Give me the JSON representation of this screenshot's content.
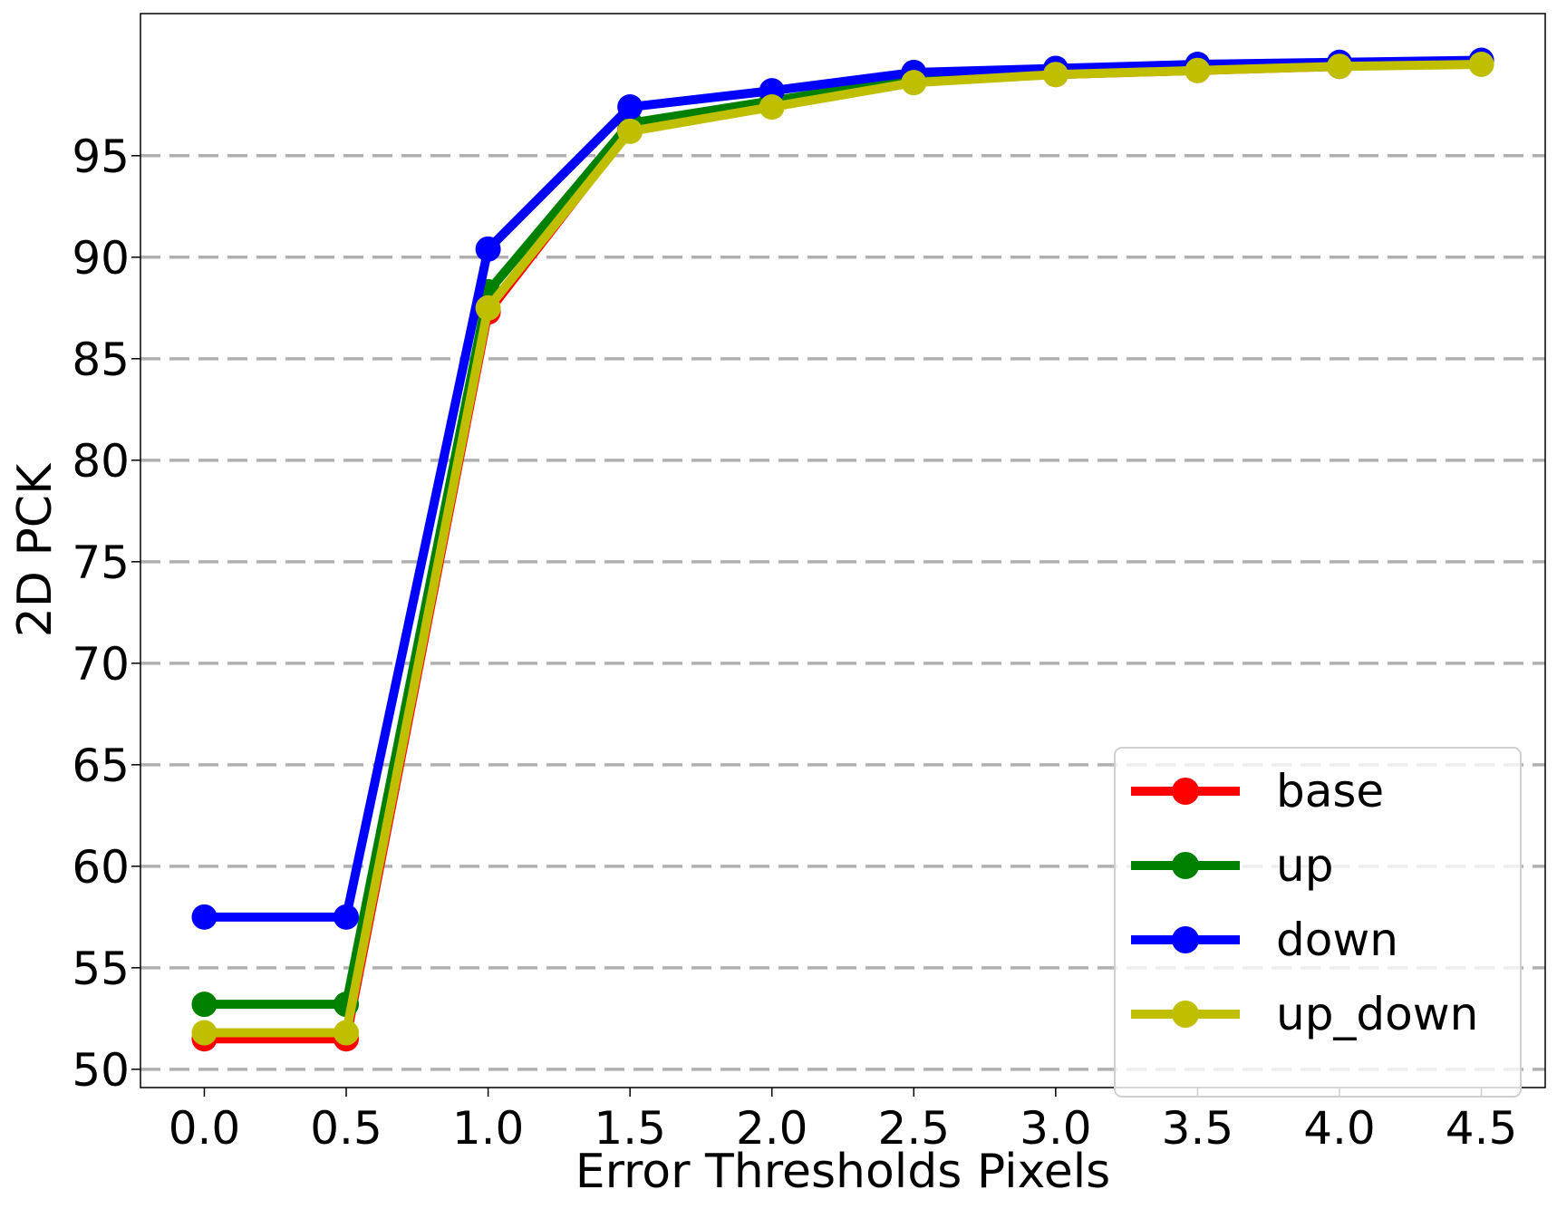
{
  "chart_data": {
    "type": "line",
    "title": "",
    "xlabel": "Error Thresholds Pixels",
    "ylabel": "2D PCK",
    "x": [
      0.0,
      0.5,
      1.0,
      1.5,
      2.0,
      2.5,
      3.0,
      3.5,
      4.0,
      4.5
    ],
    "x_tick_labels": [
      "0.0",
      "0.5",
      "1.0",
      "1.5",
      "2.0",
      "2.5",
      "3.0",
      "3.5",
      "4.0",
      "4.5"
    ],
    "xlim": [
      -0.225,
      4.725
    ],
    "ylim": [
      49.1,
      102.0
    ],
    "y_ticks": [
      50,
      55,
      60,
      65,
      70,
      75,
      80,
      85,
      90,
      95
    ],
    "y_tick_labels": [
      "50",
      "55",
      "60",
      "65",
      "70",
      "75",
      "80",
      "85",
      "90",
      "95"
    ],
    "grid": "horizontal dashed",
    "legend_position": "lower-right",
    "series": [
      {
        "name": "base",
        "color": "#ff0000",
        "values": [
          51.5,
          51.5,
          87.3,
          96.3,
          97.5,
          98.7,
          99.0,
          99.2,
          99.4,
          99.6
        ]
      },
      {
        "name": "up",
        "color": "#008000",
        "values": [
          53.2,
          53.2,
          88.3,
          96.6,
          97.7,
          98.8,
          99.1,
          99.3,
          99.5,
          99.6
        ]
      },
      {
        "name": "down",
        "color": "#0000ff",
        "values": [
          57.5,
          57.5,
          90.4,
          97.4,
          98.2,
          99.1,
          99.3,
          99.5,
          99.6,
          99.7
        ]
      },
      {
        "name": "up_down",
        "color": "#bfbf00",
        "values": [
          51.8,
          51.8,
          87.5,
          96.2,
          97.4,
          98.6,
          99.0,
          99.2,
          99.4,
          99.5
        ]
      }
    ]
  }
}
